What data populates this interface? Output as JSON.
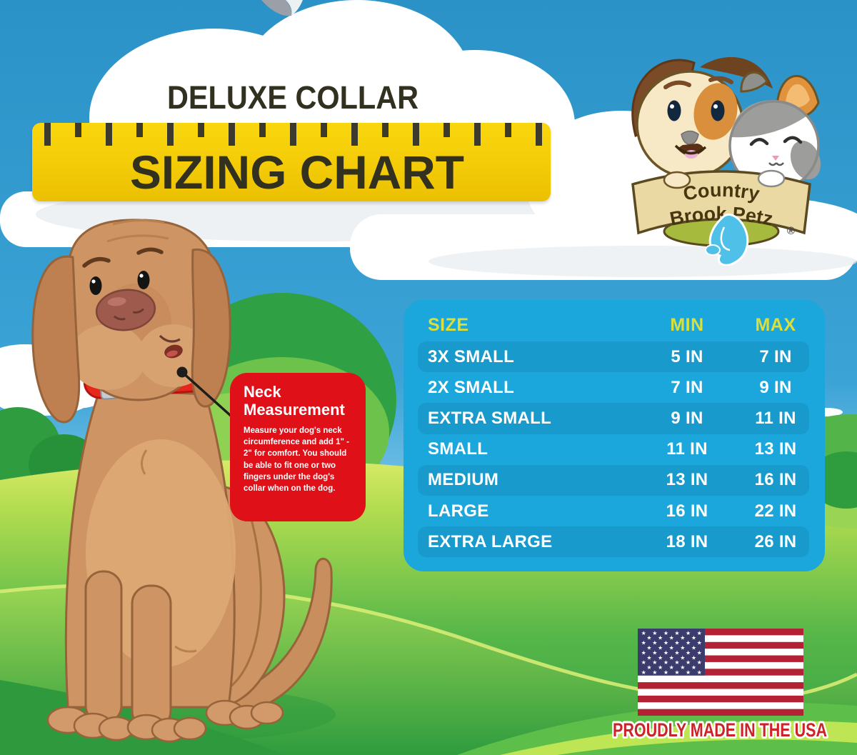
{
  "title": {
    "product_line": "DELUXE COLLAR",
    "heading": "SIZING CHART"
  },
  "brand": {
    "name_arc_top": "Country",
    "name_arc_bottom": "Brook Petz",
    "registered_mark": "®"
  },
  "callout": {
    "title": "Neck Measurement",
    "body": "Measure your dog's neck circumference and add 1\" - 2\" for comfort. You should be able to fit one or two fingers under the dog's collar when on the dog."
  },
  "chart_data": {
    "type": "table",
    "title": "DELUXE COLLAR SIZING CHART",
    "columns": [
      "SIZE",
      "MIN",
      "MAX"
    ],
    "rows": [
      [
        "3X SMALL",
        "5 IN",
        "7 IN"
      ],
      [
        "2X SMALL",
        "7 IN",
        "9 IN"
      ],
      [
        "EXTRA SMALL",
        "9 IN",
        "11 IN"
      ],
      [
        "SMALL",
        "11 IN",
        "13 IN"
      ],
      [
        "MEDIUM",
        "13 IN",
        "16 IN"
      ],
      [
        "LARGE",
        "16 IN",
        "22 IN"
      ],
      [
        "EXTRA LARGE",
        "18 IN",
        "26 IN"
      ]
    ],
    "units": "inches",
    "sizes": [
      "3X SMALL",
      "2X SMALL",
      "EXTRA SMALL",
      "SMALL",
      "MEDIUM",
      "LARGE",
      "EXTRA LARGE"
    ],
    "min_in": [
      5,
      7,
      9,
      11,
      13,
      16,
      18
    ],
    "max_in": [
      7,
      9,
      11,
      13,
      16,
      22,
      26
    ]
  },
  "footer": {
    "made_in": "PROUDLY MADE IN THE USA"
  },
  "colors": {
    "sky_blue": "#2D9ACF",
    "ruler_yellow": "#F6CE0B",
    "tick_dark": "#3B3A2C",
    "table_blue": "#1BA7DC",
    "table_header_yellow": "#D8DF3E",
    "callout_red": "#E01019",
    "collar_red": "#E7261C",
    "footer_text_red": "#CC2229",
    "flag_red": "#B22234",
    "flag_canton_blue": "#3C3B6E",
    "grass_green": "#45AC47",
    "dog_fur": "#CE9464"
  }
}
